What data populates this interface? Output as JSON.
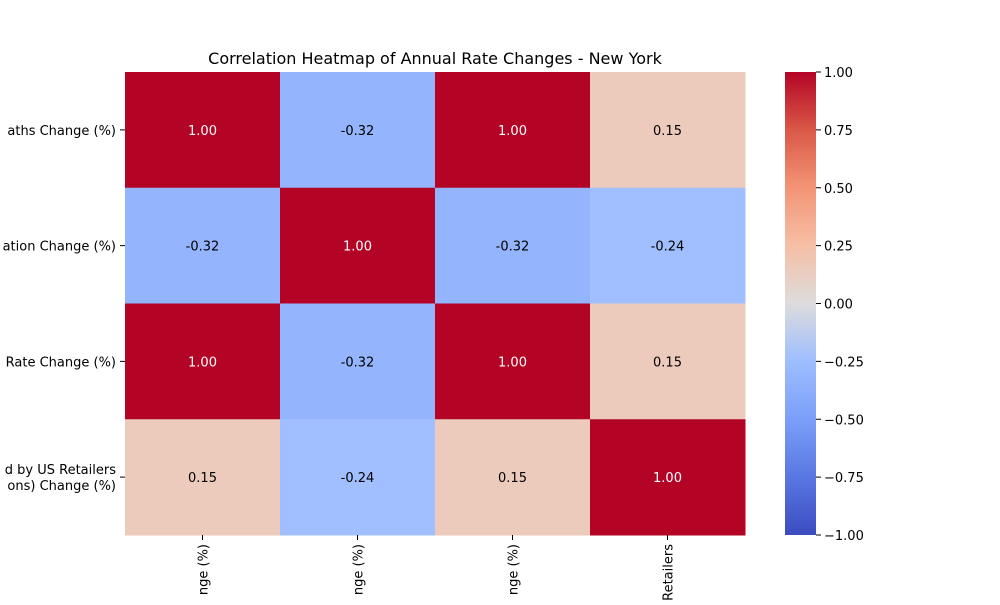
{
  "chart_data": {
    "type": "heatmap",
    "title": "Correlation Heatmap of Annual Rate Changes - New York",
    "rows": [
      [
        "aths Change (%)"
      ],
      [
        "ation Change (%)"
      ],
      [
        "Rate Change (%)"
      ],
      [
        "d by US Retailers",
        "ons) Change (%)"
      ]
    ],
    "columns": [
      "nge (%)",
      "nge (%)",
      "nge (%)",
      "Retailers"
    ],
    "values": [
      [
        1.0,
        -0.32,
        1.0,
        0.15
      ],
      [
        -0.32,
        1.0,
        -0.32,
        -0.24
      ],
      [
        1.0,
        -0.32,
        1.0,
        0.15
      ],
      [
        0.15,
        -0.24,
        0.15,
        1.0
      ]
    ],
    "cell_labels": [
      [
        "1.00",
        "-0.32",
        "1.00",
        "0.15"
      ],
      [
        "-0.32",
        "1.00",
        "-0.32",
        "-0.24"
      ],
      [
        "1.00",
        "-0.32",
        "1.00",
        "0.15"
      ],
      [
        "0.15",
        "-0.24",
        "0.15",
        "1.00"
      ]
    ],
    "colormap": "coolwarm",
    "vmin": -1.0,
    "vmax": 1.0,
    "colorbar_ticks": [
      1.0,
      0.75,
      0.5,
      0.25,
      0.0,
      -0.25,
      -0.5,
      -0.75,
      -1.0
    ],
    "colorbar_tick_labels": [
      "1.00",
      "0.75",
      "0.50",
      "0.25",
      "0.00",
      "−0.25",
      "−0.50",
      "−0.75",
      "−1.00"
    ],
    "grid": false,
    "legend": "colorbar-right"
  }
}
